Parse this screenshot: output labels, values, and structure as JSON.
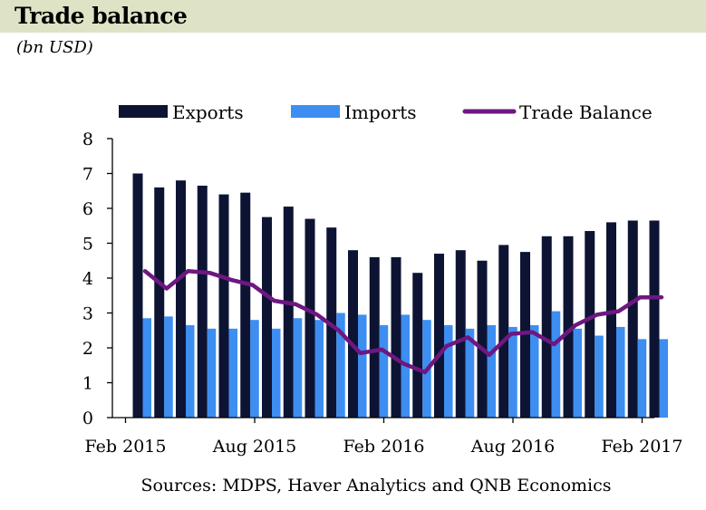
{
  "header": {
    "title": "Trade balance",
    "subtitle": "(bn USD)"
  },
  "colors": {
    "exports": "#0d1433",
    "imports": "#3d8ef0",
    "balance": "#6e1781",
    "title_band": "#dfe3c6",
    "axis": "#000000"
  },
  "chart_data": {
    "type": "bar",
    "title": "Trade balance",
    "subtitle": "(bn USD)",
    "xlabel": "",
    "ylabel": "",
    "ylim": [
      0,
      8
    ],
    "yticks": [
      0,
      1,
      2,
      3,
      4,
      5,
      6,
      7,
      8
    ],
    "grid": false,
    "legend_position": "top",
    "categories": [
      "Feb 2015",
      "Mar 2015",
      "Apr 2015",
      "May 2015",
      "Jun 2015",
      "Jul 2015",
      "Aug 2015",
      "Sep 2015",
      "Oct 2015",
      "Nov 2015",
      "Dec 2015",
      "Jan 2016",
      "Feb 2016",
      "Mar 2016",
      "Apr 2016",
      "May 2016",
      "Jun 2016",
      "Jul 2016",
      "Aug 2016",
      "Sep 2016",
      "Oct 2016",
      "Nov 2016",
      "Dec 2016",
      "Jan 2017",
      "Feb 2017"
    ],
    "xtick_labels": [
      "Feb 2015",
      "Aug 2015",
      "Feb 2016",
      "Aug 2016",
      "Feb 2017"
    ],
    "xtick_index": [
      0,
      6,
      12,
      18,
      24
    ],
    "series": [
      {
        "name": "Exports",
        "kind": "bar",
        "values": [
          7.0,
          6.6,
          6.8,
          6.65,
          6.4,
          6.45,
          5.75,
          6.05,
          5.7,
          5.45,
          4.8,
          4.6,
          4.6,
          4.15,
          4.7,
          4.8,
          4.5,
          4.95,
          4.75,
          5.2,
          5.2,
          5.35,
          5.6,
          5.65,
          5.65
        ]
      },
      {
        "name": "Imports",
        "kind": "bar",
        "values": [
          2.85,
          2.9,
          2.65,
          2.55,
          2.55,
          2.8,
          2.55,
          2.85,
          2.8,
          3.0,
          2.95,
          2.65,
          2.95,
          2.8,
          2.65,
          2.55,
          2.65,
          2.6,
          2.65,
          3.05,
          2.55,
          2.35,
          2.6,
          2.25,
          2.25
        ]
      },
      {
        "name": "Trade Balance",
        "kind": "line",
        "values": [
          4.2,
          3.7,
          4.2,
          4.15,
          3.95,
          3.8,
          3.35,
          3.25,
          2.95,
          2.5,
          1.85,
          1.95,
          1.55,
          1.3,
          2.05,
          2.3,
          1.8,
          2.4,
          2.45,
          2.1,
          2.65,
          2.95,
          3.05,
          3.45,
          3.45
        ]
      }
    ],
    "source": "Sources: MDPS, Haver Analytics and QNB Economics"
  }
}
